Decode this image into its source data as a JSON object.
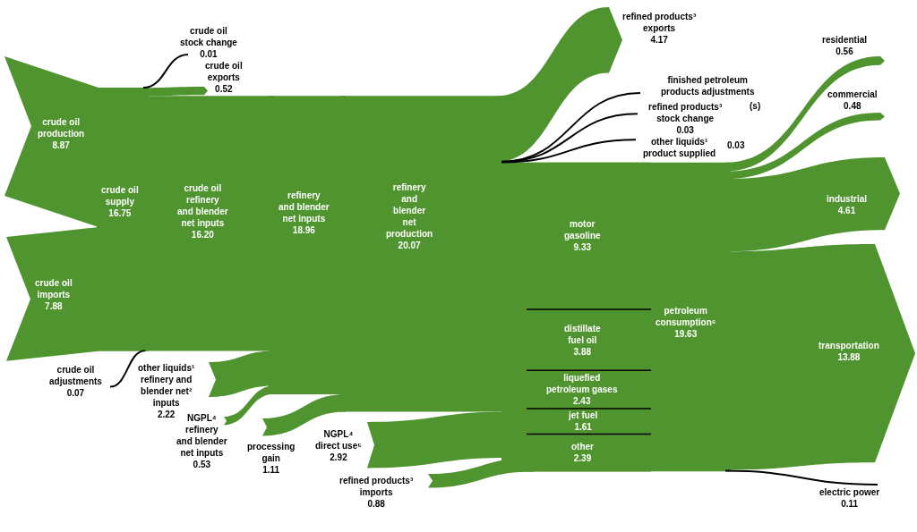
{
  "chart_data": {
    "type": "other",
    "categories": [
      "crude oil stock change",
      "crude oil exports",
      "crude oil production",
      "crude oil supply",
      "crude oil refinery and blender net inputs",
      "refinery and blender net inputs",
      "refinery and blender net production",
      "crude oil imports",
      "crude oil adjustments",
      "other liquids¹ refinery and blender net² inputs",
      "NGPL⁴ refinery and blender net inputs",
      "processing gain",
      "NGPL⁴ direct use⁵",
      "refined products³ imports",
      "refined products³ exports",
      "finished petroleum products adjustments",
      "refined products³ stock change",
      "other liquids¹ product supplied",
      "motor gasoline",
      "distillate fuel oil",
      "liquefied petroleum gases",
      "jet fuel",
      "other",
      "petroleum consumption⁶",
      "residential",
      "commercial",
      "industrial",
      "transportation",
      "electric power"
    ],
    "values": [
      0.01,
      0.52,
      8.87,
      16.75,
      16.2,
      18.96,
      20.07,
      7.88,
      0.07,
      2.22,
      0.53,
      1.11,
      2.92,
      0.88,
      4.17,
      null,
      0.03,
      0.03,
      9.33,
      3.88,
      2.43,
      1.61,
      2.39,
      19.63,
      0.56,
      0.48,
      4.61,
      13.88,
      0.11
    ],
    "value_labels": [
      "0.01",
      "0.52",
      "8.87",
      "16.75",
      "16.20",
      "18.96",
      "20.07",
      "7.88",
      "0.07",
      "2.22",
      "0.53",
      "1.11",
      "2.92",
      "0.88",
      "4.17",
      "(s)",
      "0.03",
      "0.03",
      "9.33",
      "3.88",
      "2.43",
      "1.61",
      "2.39",
      "19.63",
      "0.56",
      "0.48",
      "4.61",
      "13.88",
      "0.11"
    ],
    "colors": [
      "#000000",
      "#509430",
      "#509430",
      "#509430",
      "#509430",
      "#509430",
      "#509430",
      "#509430",
      "#000000",
      "#509430",
      "#509430",
      "#509430",
      "#509430",
      "#509430",
      "#509430",
      "#000000",
      "#000000",
      "#000000",
      "#509430",
      "#509430",
      "#509430",
      "#509430",
      "#509430",
      "#509430",
      "#509430",
      "#509430",
      "#509430",
      "#509430",
      "#000000"
    ]
  }
}
